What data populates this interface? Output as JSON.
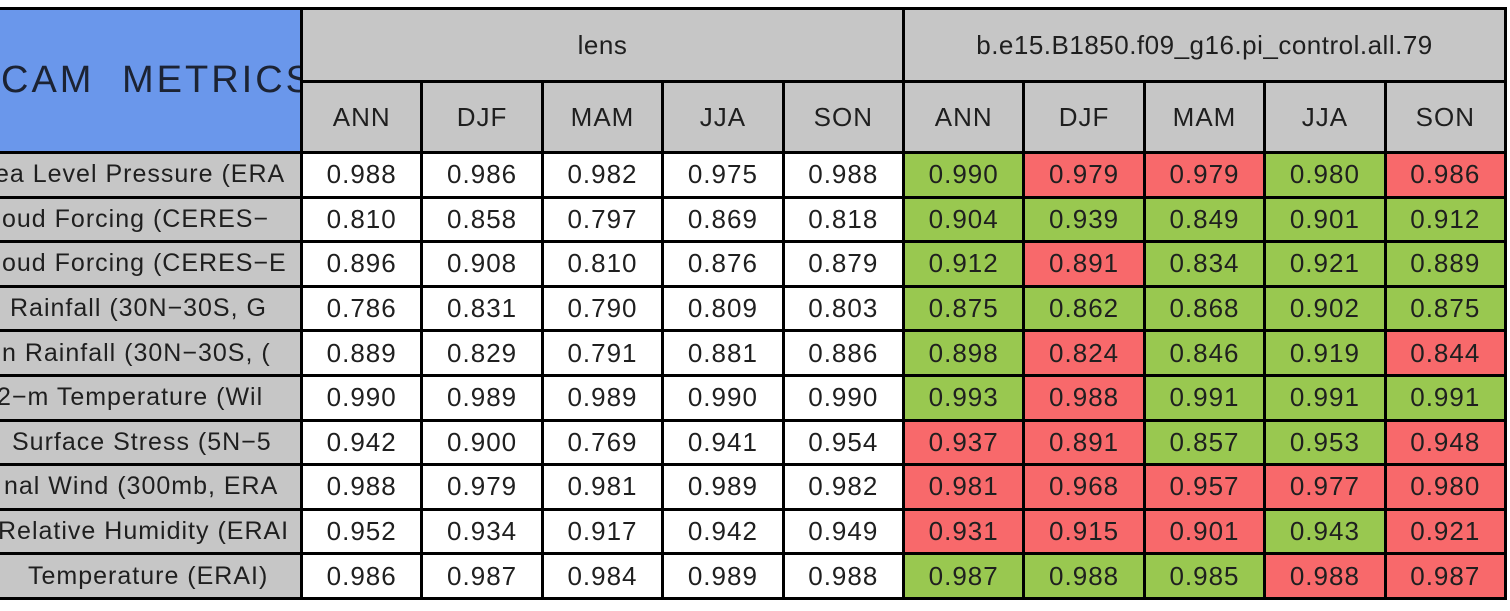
{
  "title": "CAM METRICS",
  "colors": {
    "blue": "#6A97EB",
    "gray": "#C6C6C6",
    "green": "#99C850",
    "red": "#F8696B",
    "border": "#000000"
  },
  "chart_data": {
    "type": "table",
    "title": "CAM METRICS",
    "column_groups": [
      "lens",
      "b.e15.B1850.f09_g16.pi_control.all.79"
    ],
    "seasons": [
      "ANN",
      "DJF",
      "MAM",
      "JJA",
      "SON"
    ],
    "cell_color_legend": {
      "green": "control value >= lens value",
      "red": "control value < lens value"
    },
    "rows": [
      {
        "label": "ea Level Pressure (ERA",
        "lens": [
          "0.988",
          "0.986",
          "0.982",
          "0.975",
          "0.988"
        ],
        "control": [
          "0.990",
          "0.979",
          "0.979",
          "0.980",
          "0.986"
        ],
        "control_flags": [
          "green",
          "red",
          "red",
          "green",
          "red"
        ]
      },
      {
        "label": "oud Forcing (CERES−",
        "lens": [
          "0.810",
          "0.858",
          "0.797",
          "0.869",
          "0.818"
        ],
        "control": [
          "0.904",
          "0.939",
          "0.849",
          "0.901",
          "0.912"
        ],
        "control_flags": [
          "green",
          "green",
          "green",
          "green",
          "green"
        ]
      },
      {
        "label": "oud Forcing (CERES−E",
        "lens": [
          "0.896",
          "0.908",
          "0.810",
          "0.876",
          "0.879"
        ],
        "control": [
          "0.912",
          "0.891",
          "0.834",
          "0.921",
          "0.889"
        ],
        "control_flags": [
          "green",
          "red",
          "green",
          "green",
          "green"
        ]
      },
      {
        "label": "Rainfall (30N−30S, G",
        "lens": [
          "0.786",
          "0.831",
          "0.790",
          "0.809",
          "0.803"
        ],
        "control": [
          "0.875",
          "0.862",
          "0.868",
          "0.902",
          "0.875"
        ],
        "control_flags": [
          "green",
          "green",
          "green",
          "green",
          "green"
        ]
      },
      {
        "label": "n Rainfall (30N−30S, (",
        "lens": [
          "0.889",
          "0.829",
          "0.791",
          "0.881",
          "0.886"
        ],
        "control": [
          "0.898",
          "0.824",
          "0.846",
          "0.919",
          "0.844"
        ],
        "control_flags": [
          "green",
          "red",
          "green",
          "green",
          "red"
        ]
      },
      {
        "label": "2−m Temperature (Wil",
        "lens": [
          "0.990",
          "0.989",
          "0.989",
          "0.990",
          "0.990"
        ],
        "control": [
          "0.993",
          "0.988",
          "0.991",
          "0.991",
          "0.991"
        ],
        "control_flags": [
          "green",
          "red",
          "green",
          "green",
          "green"
        ]
      },
      {
        "label": "Surface Stress (5N−5",
        "lens": [
          "0.942",
          "0.900",
          "0.769",
          "0.941",
          "0.954"
        ],
        "control": [
          "0.937",
          "0.891",
          "0.857",
          "0.953",
          "0.948"
        ],
        "control_flags": [
          "red",
          "red",
          "green",
          "green",
          "red"
        ]
      },
      {
        "label": "nal Wind (300mb, ERA",
        "lens": [
          "0.988",
          "0.979",
          "0.981",
          "0.989",
          "0.982"
        ],
        "control": [
          "0.981",
          "0.968",
          "0.957",
          "0.977",
          "0.980"
        ],
        "control_flags": [
          "red",
          "red",
          "red",
          "red",
          "red"
        ]
      },
      {
        "label": "Relative Humidity (ERAI",
        "lens": [
          "0.952",
          "0.934",
          "0.917",
          "0.942",
          "0.949"
        ],
        "control": [
          "0.931",
          "0.915",
          "0.901",
          "0.943",
          "0.921"
        ],
        "control_flags": [
          "red",
          "red",
          "red",
          "green",
          "red"
        ]
      },
      {
        "label": "Temperature (ERAI)",
        "lens": [
          "0.986",
          "0.987",
          "0.984",
          "0.989",
          "0.988"
        ],
        "control": [
          "0.987",
          "0.988",
          "0.985",
          "0.988",
          "0.987"
        ],
        "control_flags": [
          "green",
          "green",
          "green",
          "red",
          "red"
        ]
      }
    ]
  }
}
